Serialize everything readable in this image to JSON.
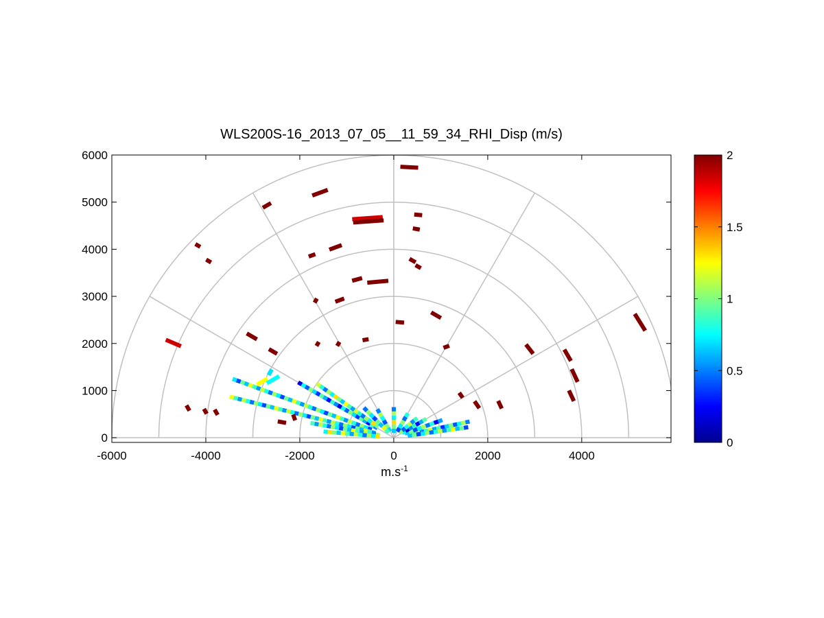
{
  "chart_data": {
    "type": "polar-rhi-scatter",
    "title": "WLS200S-16_2013_07_05__11_59_34_RHI_Disp (m/s)",
    "xlabel": "m.s",
    "xlabel_sup": "-1",
    "xlim": [
      -6000,
      5900
    ],
    "ylim": [
      -100,
      6000
    ],
    "xticks": [
      -6000,
      -4000,
      -2000,
      0,
      2000,
      4000
    ],
    "yticks": [
      0,
      1000,
      2000,
      3000,
      4000,
      5000,
      6000
    ],
    "range_rings": [
      1000,
      2000,
      3000,
      4000,
      5000,
      6000
    ],
    "radial_angles_deg": [
      0,
      30,
      60,
      90,
      120,
      150,
      180
    ],
    "colorbar": {
      "min": 0,
      "max": 2,
      "ticks": [
        0,
        0.5,
        1,
        1.5,
        2
      ]
    },
    "segments": [
      {
        "x": -4690,
        "y": 2010,
        "len": 350,
        "angle": 157,
        "v": 1.85
      },
      {
        "x": -3020,
        "y": 2150,
        "len": 250,
        "angle": 150,
        "v": 2
      },
      {
        "x": -2570,
        "y": 1830,
        "len": 200,
        "angle": 150,
        "v": 2
      },
      {
        "x": -4170,
        "y": 4080,
        "len": 120,
        "angle": 150,
        "v": 2
      },
      {
        "x": -3940,
        "y": 3750,
        "len": 120,
        "angle": 150,
        "v": 2
      },
      {
        "x": -2700,
        "y": 4930,
        "len": 200,
        "angle": 30,
        "v": 2
      },
      {
        "x": -1570,
        "y": 5200,
        "len": 350,
        "angle": 20,
        "v": 2
      },
      {
        "x": -1240,
        "y": 4040,
        "len": 280,
        "angle": 20,
        "v": 2
      },
      {
        "x": -1740,
        "y": 3870,
        "len": 150,
        "angle": 20,
        "v": 2
      },
      {
        "x": -780,
        "y": 3360,
        "len": 220,
        "angle": 15,
        "v": 2
      },
      {
        "x": -1150,
        "y": 2920,
        "len": 200,
        "angle": 20,
        "v": 2
      },
      {
        "x": -340,
        "y": 3310,
        "len": 450,
        "angle": 5,
        "v": 2
      },
      {
        "x": -560,
        "y": 4660,
        "len": 650,
        "angle": 4,
        "v": 1.85
      },
      {
        "x": -540,
        "y": 4590,
        "len": 650,
        "angle": 4,
        "v": 2
      },
      {
        "x": 330,
        "y": 5740,
        "len": 380,
        "angle": -3,
        "v": 2
      },
      {
        "x": 520,
        "y": 4730,
        "len": 170,
        "angle": -5,
        "v": 2
      },
      {
        "x": 480,
        "y": 4430,
        "len": 150,
        "angle": -10,
        "v": 2
      },
      {
        "x": 400,
        "y": 3760,
        "len": 150,
        "angle": -30,
        "v": 2
      },
      {
        "x": 520,
        "y": 3630,
        "len": 130,
        "angle": -30,
        "v": 2
      },
      {
        "x": 130,
        "y": 2450,
        "len": 180,
        "angle": -5,
        "v": 2
      },
      {
        "x": 900,
        "y": 2600,
        "len": 240,
        "angle": -30,
        "v": 2
      },
      {
        "x": -1660,
        "y": 2910,
        "len": 100,
        "angle": 60,
        "v": 2
      },
      {
        "x": 2890,
        "y": 1880,
        "len": 250,
        "angle": -52,
        "v": 2
      },
      {
        "x": 3700,
        "y": 1750,
        "len": 280,
        "angle": -60,
        "v": 2
      },
      {
        "x": 3850,
        "y": 1320,
        "len": 300,
        "angle": -65,
        "v": 2
      },
      {
        "x": 3780,
        "y": 890,
        "len": 250,
        "angle": -65,
        "v": 2
      },
      {
        "x": 5240,
        "y": 2450,
        "len": 420,
        "angle": -58,
        "v": 2
      },
      {
        "x": 2260,
        "y": 700,
        "len": 180,
        "angle": -65,
        "v": 2
      },
      {
        "x": 1770,
        "y": 700,
        "len": 180,
        "angle": -55,
        "v": 2
      },
      {
        "x": 1430,
        "y": 900,
        "len": 130,
        "angle": -55,
        "v": 2
      },
      {
        "x": -4380,
        "y": 630,
        "len": 130,
        "angle": -60,
        "v": 2
      },
      {
        "x": -4010,
        "y": 560,
        "len": 120,
        "angle": -60,
        "v": 2
      },
      {
        "x": -3780,
        "y": 540,
        "len": 130,
        "angle": -60,
        "v": 2
      },
      {
        "x": -2380,
        "y": 330,
        "len": 180,
        "angle": -10,
        "v": 2
      },
      {
        "x": -2120,
        "y": 430,
        "len": 130,
        "angle": -70,
        "v": 2
      },
      {
        "x": -2800,
        "y": 1190,
        "len": 260,
        "angle": 30,
        "v": 1.25
      },
      {
        "x": -2570,
        "y": 1230,
        "len": 300,
        "angle": 30,
        "v": 0.75
      },
      {
        "x": -2630,
        "y": 1390,
        "len": 140,
        "angle": 60,
        "v": 0.7
      },
      {
        "x": -1180,
        "y": 1990,
        "len": 100,
        "angle": 60,
        "v": 2
      },
      {
        "x": -1620,
        "y": 1990,
        "len": 100,
        "angle": 60,
        "v": 2
      },
      {
        "x": -600,
        "y": 2080,
        "len": 130,
        "angle": 10,
        "v": 2
      },
      {
        "x": 1120,
        "y": 1930,
        "len": 130,
        "angle": 20,
        "v": 2
      }
    ],
    "near_field_beams": [
      {
        "angle_deg": 160,
        "r0": 500,
        "r1": 3650,
        "v": 0.8
      },
      {
        "angle_deg": 166,
        "r0": 400,
        "r1": 3600,
        "v": 0.8
      },
      {
        "angle_deg": 150,
        "r0": 400,
        "r1": 2350,
        "v": 0.6
      },
      {
        "angle_deg": 145,
        "r0": 400,
        "r1": 2000,
        "v": 0.9
      },
      {
        "angle_deg": 170,
        "r0": 300,
        "r1": 1800,
        "v": 0.8
      },
      {
        "angle_deg": 175,
        "r0": 300,
        "r1": 1500,
        "v": 0.9
      },
      {
        "angle_deg": 12,
        "r0": 300,
        "r1": 1650,
        "v": 0.75
      },
      {
        "angle_deg": 8,
        "r0": 300,
        "r1": 1600,
        "v": 0.8
      },
      {
        "angle_deg": 20,
        "r0": 250,
        "r1": 1100,
        "v": 0.65
      },
      {
        "angle_deg": 30,
        "r0": 200,
        "r1": 800,
        "v": 0.6
      },
      {
        "angle_deg": 40,
        "r0": 150,
        "r1": 650,
        "v": 0.7
      },
      {
        "angle_deg": 60,
        "r0": 150,
        "r1": 600,
        "v": 0.8
      },
      {
        "angle_deg": 90,
        "r0": 100,
        "r1": 650,
        "v": 0.9
      },
      {
        "angle_deg": 120,
        "r0": 150,
        "r1": 700,
        "v": 0.75
      },
      {
        "angle_deg": 135,
        "r0": 150,
        "r1": 900,
        "v": 0.8
      }
    ]
  }
}
